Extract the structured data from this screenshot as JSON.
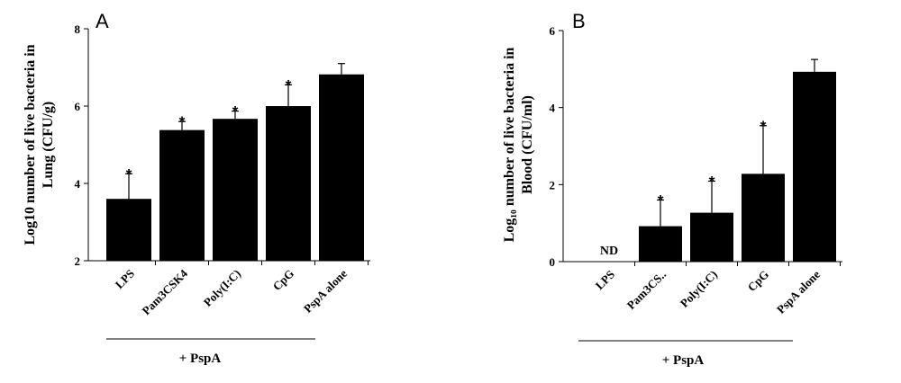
{
  "chart_data": [
    {
      "type": "bar",
      "panel_label": "A",
      "ylabel_line1": "Log10 number of live bacteria in",
      "ylabel_line2": "Lung (CFU/g)",
      "ylim": [
        2,
        8
      ],
      "yticks": [
        2,
        4,
        6,
        8
      ],
      "categories": [
        "LPS",
        "Pam3CSK4",
        "Poly(I:C)",
        "CpG",
        "PspA alone"
      ],
      "values": [
        3.6,
        5.38,
        5.67,
        6.0,
        6.82
      ],
      "errors": [
        0.65,
        0.22,
        0.2,
        0.55,
        0.28
      ],
      "significant": [
        "*",
        "*",
        "*",
        "*",
        ""
      ],
      "group_label": "+ PspA",
      "group_span": [
        "LPS",
        "CpG"
      ]
    },
    {
      "type": "bar",
      "panel_label": "B",
      "ylabel_line1": "Log₁₀ number of live bacteria in",
      "ylabel_line2": "Blood (CFU/ml)",
      "ylim": [
        0,
        6
      ],
      "yticks": [
        0,
        2,
        4,
        6
      ],
      "categories": [
        "LPS",
        "Pam3CS..",
        "Poly(I:C)",
        "CpG",
        "PspA alone"
      ],
      "values": [
        null,
        0.92,
        1.27,
        2.28,
        4.93
      ],
      "errors": [
        null,
        0.68,
        0.82,
        1.25,
        0.32
      ],
      "significant": [
        "",
        "*",
        "*",
        "*",
        ""
      ],
      "not_detected_label": "ND",
      "group_label": "+ PspA",
      "group_span": [
        "LPS",
        "CpG"
      ]
    }
  ]
}
